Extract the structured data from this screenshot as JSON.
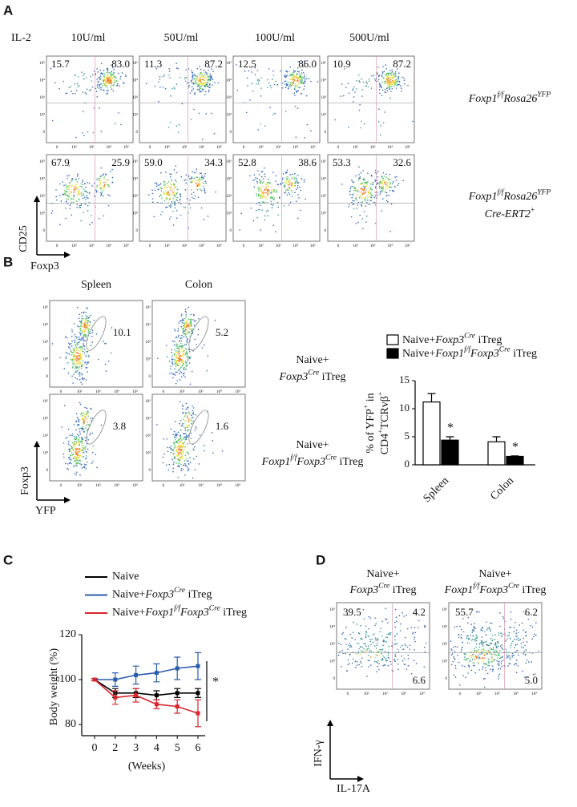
{
  "panel_labels": [
    "A",
    "B",
    "C",
    "D"
  ],
  "flow_ticks": [
    "0",
    "10²",
    "10³",
    "10⁴",
    "10⁵"
  ],
  "panel_a": {
    "param": "IL-2",
    "columns": [
      "10U/ml",
      "50U/ml",
      "100U/ml",
      "500U/ml"
    ],
    "rows": [
      {
        "label": [
          [
            {
              "t": "Foxp1",
              "i": true
            },
            {
              "t": "f/f",
              "i": true,
              "sup": true
            },
            {
              "t": "Rosa26",
              "i": true
            },
            {
              "t": "YFP",
              "i": true,
              "sup": true
            }
          ]
        ],
        "quadrants": [
          [
            "15.7",
            "83.0"
          ],
          [
            "11.3",
            "87.2"
          ],
          [
            "12.5",
            "86.0"
          ],
          [
            "10.9",
            "87.2"
          ]
        ]
      },
      {
        "label": [
          [
            {
              "t": "Foxp1",
              "i": true
            },
            {
              "t": "f/f",
              "i": true,
              "sup": true
            },
            {
              "t": "Rosa26",
              "i": true
            },
            {
              "t": "YFP",
              "i": true,
              "sup": true
            }
          ],
          [
            {
              "t": "Cre-ERT2",
              "i": true
            },
            {
              "t": "+",
              "sup": true
            }
          ]
        ],
        "quadrants": [
          [
            "67.9",
            "25.9"
          ],
          [
            "59.0",
            "34.3"
          ],
          [
            "52.8",
            "38.6"
          ],
          [
            "53.3",
            "32.6"
          ]
        ]
      }
    ],
    "y_axis": "CD25",
    "x_axis": "Foxp3"
  },
  "panel_b": {
    "columns": [
      "Spleen",
      "Colon"
    ],
    "rows": [
      {
        "label": [
          [
            {
              "t": "Naive+"
            }
          ],
          [
            {
              "t": "Foxp3",
              "i": true
            },
            {
              "t": "Cre",
              "i": true,
              "sup": true
            },
            {
              "t": " iTreg"
            }
          ]
        ],
        "gates": [
          "10.1",
          "5.2"
        ]
      },
      {
        "label": [
          [
            {
              "t": "Naive+"
            }
          ],
          [
            {
              "t": "Foxp1",
              "i": true
            },
            {
              "t": "f/f",
              "i": true,
              "sup": true
            },
            {
              "t": "Foxp3",
              "i": true
            },
            {
              "t": "Cre",
              "i": true,
              "sup": true
            },
            {
              "t": " iTreg"
            }
          ]
        ],
        "gates": [
          "3.8",
          "1.6"
        ]
      }
    ],
    "y_axis": "Foxp3",
    "x_axis": "YFP"
  },
  "panel_d": {
    "columns": [
      [
        [
          {
            "t": "Naive+"
          }
        ],
        [
          {
            "t": "Foxp3",
            "i": true
          },
          {
            "t": "Cre",
            "i": true,
            "sup": true
          },
          {
            "t": " iTreg"
          }
        ]
      ],
      [
        [
          {
            "t": "Naive+"
          }
        ],
        [
          {
            "t": "Foxp1",
            "i": true
          },
          {
            "t": "f/f",
            "i": true,
            "sup": true
          },
          {
            "t": "Foxp3",
            "i": true
          },
          {
            "t": "Cre",
            "i": true,
            "sup": true
          },
          {
            "t": " iTreg"
          }
        ]
      ]
    ],
    "quadrants": [
      [
        "39.5",
        "4.2",
        "6.6"
      ],
      [
        "55.7",
        "6.2",
        "5.0"
      ]
    ],
    "y_axis": "IFN-γ",
    "x_axis": "IL-17A"
  },
  "chart_data": [
    {
      "type": "bar",
      "ylabel": [
        [
          {
            "t": "% of YFP"
          },
          {
            "t": "+",
            "sup": true
          },
          {
            "t": " in"
          }
        ],
        [
          {
            "t": "CD4"
          },
          {
            "t": "+",
            "sup": true
          },
          {
            "t": "TCRvβ"
          },
          {
            "t": "+",
            "sup": true
          }
        ]
      ],
      "categories": [
        "Spleen",
        "Colon"
      ],
      "series": [
        {
          "name": [
            {
              "t": "Naive+"
            },
            {
              "t": "Foxp3",
              "i": true
            },
            {
              "t": "Cre",
              "i": true,
              "sup": true
            },
            {
              "t": " iTreg"
            }
          ],
          "color": "#ffffff",
          "values": [
            11.2,
            4.1
          ],
          "errors": [
            1.5,
            0.9
          ]
        },
        {
          "name": [
            {
              "t": "Naive+"
            },
            {
              "t": "Foxp1",
              "i": true
            },
            {
              "t": "f/f",
              "i": true,
              "sup": true
            },
            {
              "t": "Foxp3",
              "i": true
            },
            {
              "t": "Cre",
              "i": true,
              "sup": true
            },
            {
              "t": " iTreg"
            }
          ],
          "color": "#000000",
          "values": [
            4.4,
            1.5
          ],
          "errors": [
            0.6,
            0.1
          ]
        }
      ],
      "annotations": [
        {
          "text": "*",
          "series": 1,
          "category": 0
        },
        {
          "text": "*",
          "series": 1,
          "category": 1
        }
      ],
      "ylim": [
        0,
        15
      ],
      "yticks": [
        0,
        5,
        10,
        15
      ]
    },
    {
      "type": "line",
      "ylabel": "Body weight (%)",
      "xlabel": "(Weeks)",
      "categories": [
        "0",
        "2",
        "3",
        "4",
        "5",
        "6"
      ],
      "series": [
        {
          "name": [
            {
              "t": "Naive"
            }
          ],
          "color": "#000000",
          "values": [
            100,
            94,
            94,
            93,
            94,
            94
          ],
          "errors": [
            0.5,
            2,
            2,
            2,
            2,
            2
          ]
        },
        {
          "name": [
            {
              "t": "Naive+"
            },
            {
              "t": "Foxp3",
              "i": true
            },
            {
              "t": "Cre",
              "i": true,
              "sup": true
            },
            {
              "t": " iTreg"
            }
          ],
          "color": "#2a5caa",
          "values": [
            100,
            100,
            102,
            103,
            105,
            106
          ],
          "errors": [
            0.5,
            3,
            4,
            4,
            5,
            6
          ]
        },
        {
          "name": [
            {
              "t": "Naive+"
            },
            {
              "t": "Foxp1",
              "i": true
            },
            {
              "t": "f/f",
              "i": true,
              "sup": true
            },
            {
              "t": "Foxp3",
              "i": true
            },
            {
              "t": "Cre",
              "i": true,
              "sup": true
            },
            {
              "t": " iTreg"
            }
          ],
          "color": "#d7262e",
          "values": [
            100,
            92,
            93,
            89,
            88,
            85
          ],
          "errors": [
            0.5,
            3,
            3,
            2,
            3,
            6
          ]
        }
      ],
      "annotations": [
        {
          "text": "*"
        }
      ],
      "ylim": [
        75,
        120
      ],
      "yticks": [
        80,
        100,
        120
      ]
    }
  ]
}
